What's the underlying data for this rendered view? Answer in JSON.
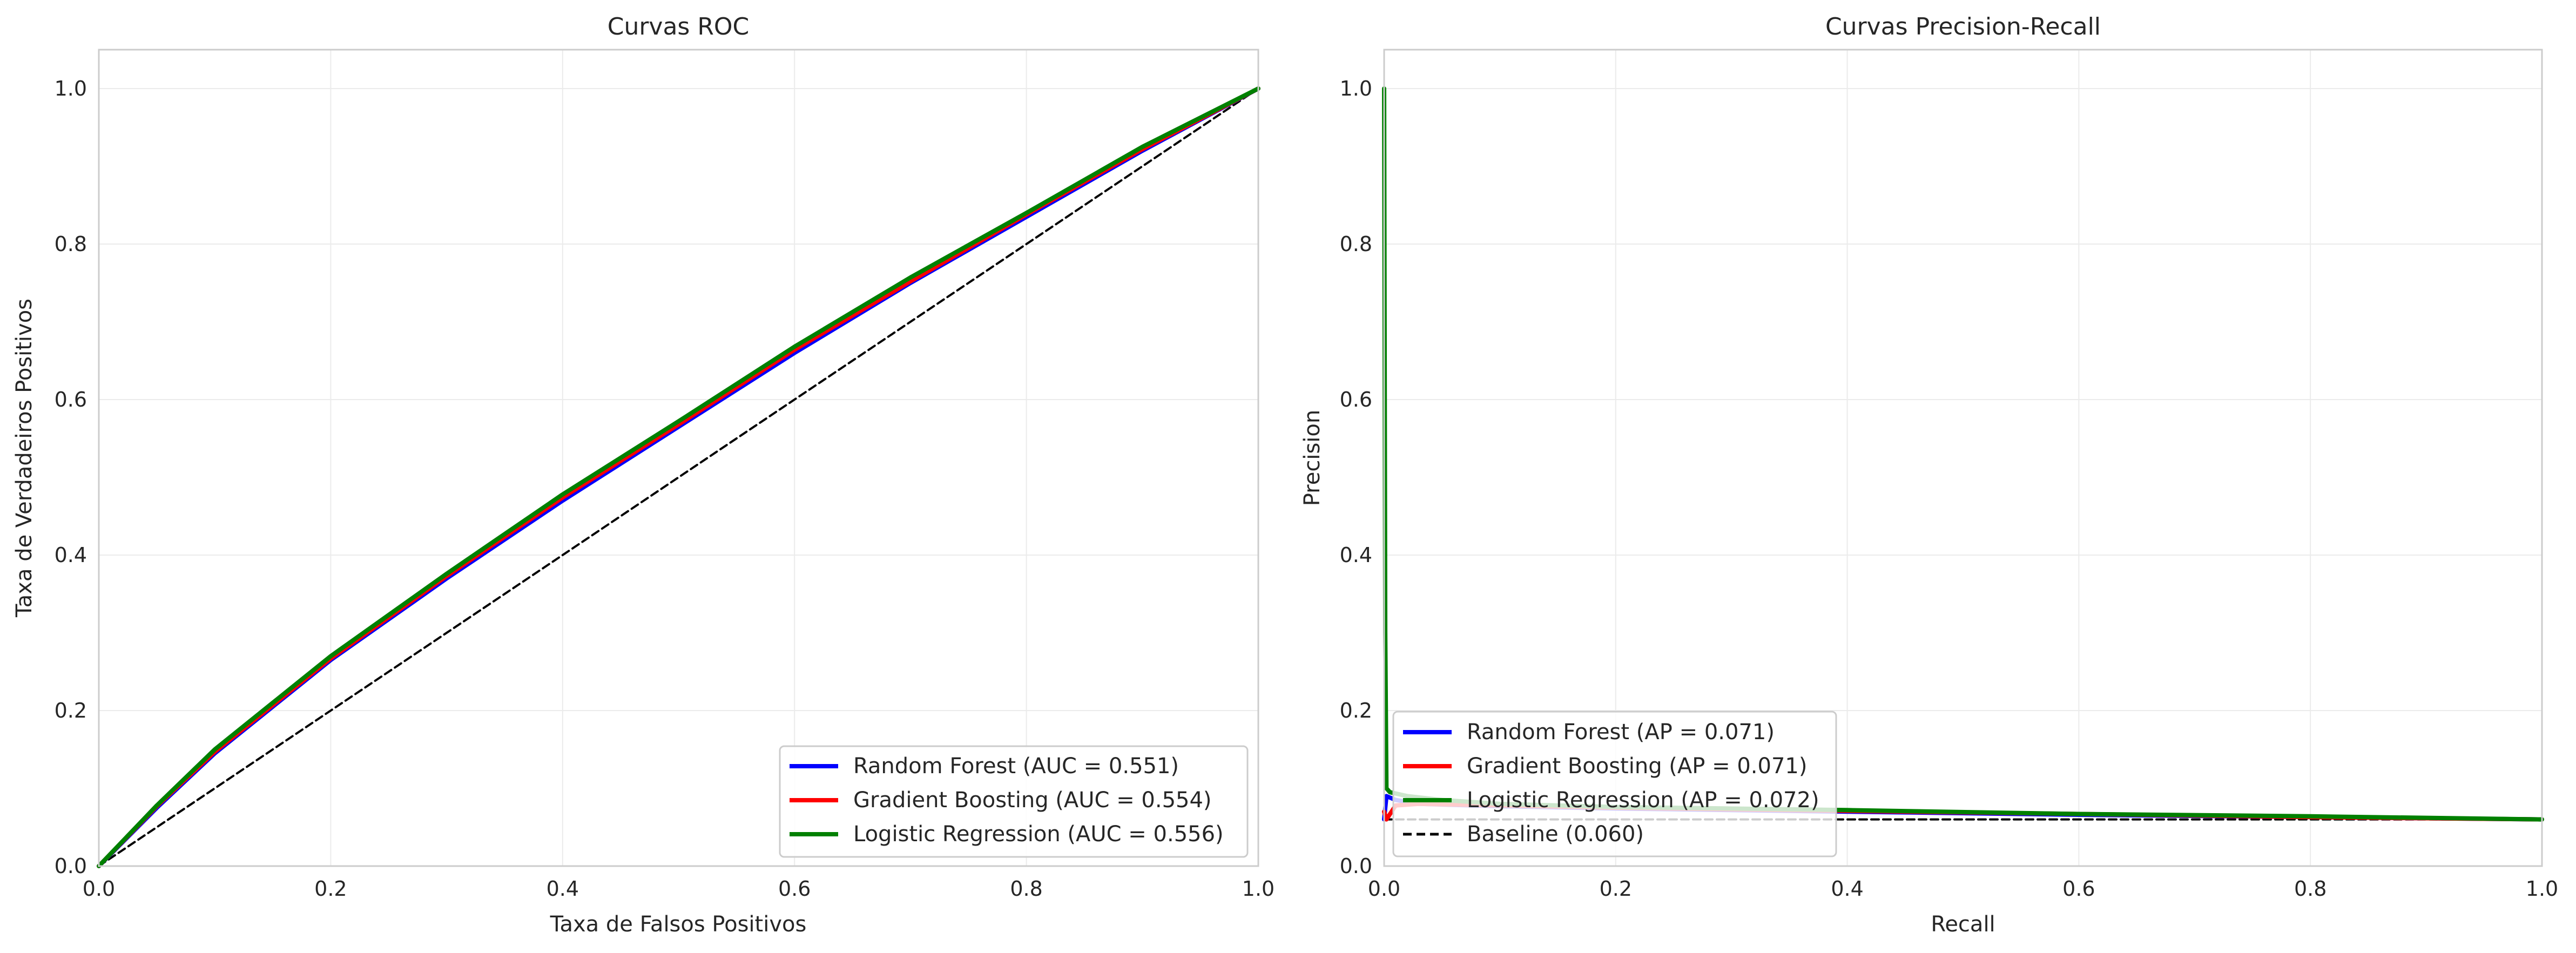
{
  "chart_data": [
    {
      "type": "line",
      "title": "Curvas ROC",
      "xlabel": "Taxa de Falsos Positivos",
      "ylabel": "Taxa de Verdadeiros Positivos",
      "xlim": [
        0.0,
        1.0
      ],
      "ylim": [
        0.0,
        1.05
      ],
      "xticks": [
        "0.0",
        "0.2",
        "0.4",
        "0.6",
        "0.8",
        "1.0"
      ],
      "yticks": [
        "0.0",
        "0.2",
        "0.4",
        "0.6",
        "0.8",
        "1.0"
      ],
      "grid": true,
      "legend_position": "lower right",
      "series": [
        {
          "name": "Random Forest (AUC = 0.551)",
          "color": "#0000ff",
          "x": [
            0,
            0.05,
            0.1,
            0.2,
            0.3,
            0.4,
            0.5,
            0.6,
            0.7,
            0.8,
            0.9,
            1.0
          ],
          "y": [
            0,
            0.075,
            0.145,
            0.265,
            0.37,
            0.47,
            0.565,
            0.66,
            0.75,
            0.835,
            0.92,
            1.0
          ]
        },
        {
          "name": "Gradient Boosting (AUC = 0.554)",
          "color": "#ff0000",
          "x": [
            0,
            0.05,
            0.1,
            0.2,
            0.3,
            0.4,
            0.5,
            0.6,
            0.7,
            0.8,
            0.9,
            1.0
          ],
          "y": [
            0,
            0.077,
            0.147,
            0.267,
            0.373,
            0.474,
            0.568,
            0.664,
            0.752,
            0.838,
            0.922,
            1.0
          ]
        },
        {
          "name": "Logistic Regression (AUC = 0.556)",
          "color": "#008000",
          "x": [
            0,
            0.05,
            0.1,
            0.2,
            0.3,
            0.4,
            0.5,
            0.6,
            0.7,
            0.8,
            0.9,
            1.0
          ],
          "y": [
            0,
            0.078,
            0.15,
            0.27,
            0.376,
            0.478,
            0.572,
            0.668,
            0.757,
            0.84,
            0.925,
            1.0
          ]
        },
        {
          "name": "",
          "color": "#000000",
          "style": "dashed",
          "x": [
            0,
            1
          ],
          "y": [
            0,
            1
          ]
        }
      ]
    },
    {
      "type": "line",
      "title": "Curvas Precision-Recall",
      "xlabel": "Recall",
      "ylabel": "Precision",
      "xlim": [
        0.0,
        1.0
      ],
      "ylim": [
        0.0,
        1.05
      ],
      "xticks": [
        "0.0",
        "0.2",
        "0.4",
        "0.6",
        "0.8",
        "1.0"
      ],
      "yticks": [
        "0.0",
        "0.2",
        "0.4",
        "0.6",
        "0.8",
        "1.0"
      ],
      "grid": true,
      "legend_position": "lower left",
      "series": [
        {
          "name": "Random Forest (AP = 0.071)",
          "color": "#0000ff",
          "x": [
            0,
            0.002,
            0.01,
            0.03,
            0.1,
            0.2,
            0.4,
            0.6,
            0.8,
            1.0
          ],
          "y": [
            0.06,
            0.09,
            0.085,
            0.08,
            0.077,
            0.074,
            0.07,
            0.066,
            0.063,
            0.06
          ]
        },
        {
          "name": "Gradient Boosting (AP = 0.071)",
          "color": "#ff0000",
          "x": [
            0,
            0.002,
            0.01,
            0.03,
            0.1,
            0.2,
            0.4,
            0.6,
            0.8,
            1.0
          ],
          "y": [
            0.07,
            0.06,
            0.078,
            0.08,
            0.078,
            0.075,
            0.071,
            0.067,
            0.063,
            0.06
          ]
        },
        {
          "name": "Logistic Regression (AP = 0.072)",
          "color": "#008000",
          "x": [
            0,
            0.001,
            0.002,
            0.005,
            0.02,
            0.05,
            0.1,
            0.2,
            0.4,
            0.6,
            0.8,
            1.0
          ],
          "y": [
            1.0,
            0.3,
            0.1,
            0.095,
            0.09,
            0.085,
            0.08,
            0.076,
            0.072,
            0.067,
            0.064,
            0.06
          ]
        },
        {
          "name": "Baseline (0.060)",
          "color": "#000000",
          "style": "dashed",
          "x": [
            0,
            1
          ],
          "y": [
            0.06,
            0.06
          ]
        }
      ]
    }
  ]
}
